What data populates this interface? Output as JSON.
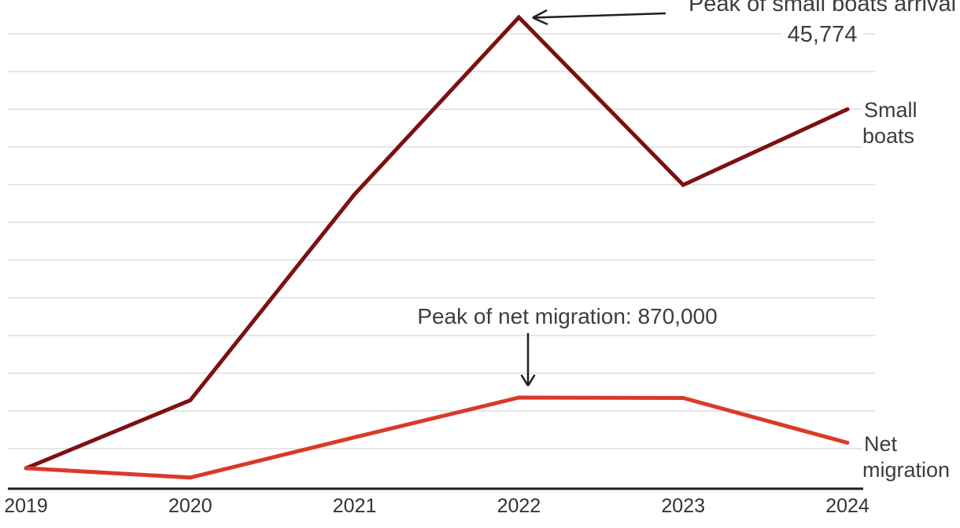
{
  "chart_data": {
    "type": "line",
    "categories": [
      "2019",
      "2020",
      "2021",
      "2022",
      "2023",
      "2024"
    ],
    "series": [
      {
        "name": "Small boats",
        "color": "#7d1012",
        "values": [
          1843,
          8466,
          28526,
          45774,
          29437,
          36816
        ]
      },
      {
        "name": "Net migration",
        "color": "#d93a28",
        "values": [
          184000,
          93000,
          484000,
          870000,
          866000,
          431000
        ]
      }
    ],
    "title": "",
    "xlabel": "",
    "ylabel": "",
    "grid": "horizontal-light-gray",
    "legend_position": "line-end-labels-right",
    "annotations": [
      {
        "target_series": "Small boats",
        "target_category": "2022",
        "line1": "Peak of small boats arrival",
        "line2": "45,774",
        "arrow": "left"
      },
      {
        "target_series": "Net migration",
        "target_category": "2022",
        "text": "Peak of net migration: 870,000",
        "arrow": "down"
      }
    ]
  },
  "colors": {
    "grid_line": "#e6e6e6",
    "axis_line": "#1f1f1f",
    "text": "#3d3d3d",
    "arrow": "#1f1f1f",
    "background": "#ffffff"
  }
}
